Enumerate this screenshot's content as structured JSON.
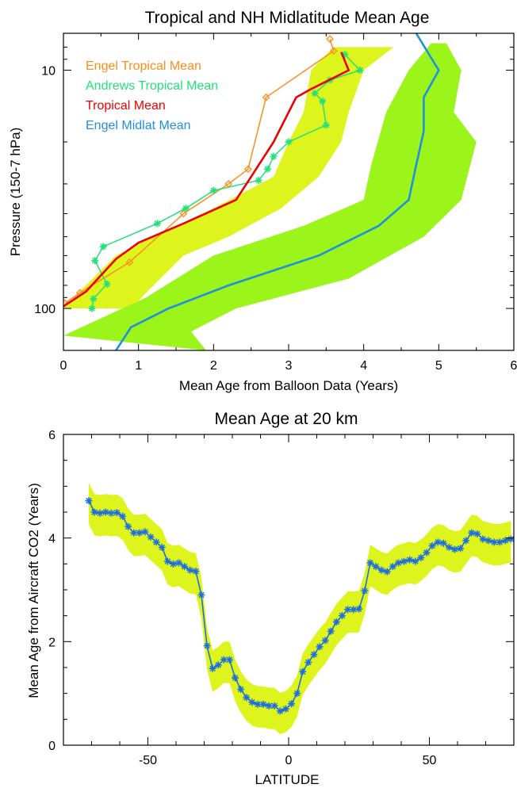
{
  "chart_data": [
    {
      "type": "line",
      "title": "Tropical and NH Midlatitude Mean Age",
      "xlabel": "Mean Age from Balloon Data (Years)",
      "ylabel": "Pressure (150-7 hPa)",
      "xlim": [
        0,
        6
      ],
      "ylim": [
        150,
        7
      ],
      "yscale": "log",
      "xticks": [
        "0",
        "1",
        "2",
        "3",
        "4",
        "5",
        "6"
      ],
      "yticks": [
        {
          "value": 100,
          "label": "100"
        },
        {
          "value": 10,
          "label": "10"
        }
      ],
      "legend_position": "top-left",
      "colors": {
        "engel_tropical": "#ff8c1a",
        "andrews_tropical": "#22e07a",
        "tropical_mean": "#ee0000",
        "engel_midlat": "#1f8fe0",
        "tropical_band": "#ddf51c",
        "midlat_band": "#9cf51a"
      },
      "bands": [
        {
          "name": "tropical-uncertainty",
          "color": "#ddf51c",
          "lower": [
            [
              0.0,
              100
            ],
            [
              0.3,
              80
            ],
            [
              0.7,
              60
            ],
            [
              1.2,
              50
            ],
            [
              2.0,
              38
            ],
            [
              2.8,
              28
            ],
            [
              3.0,
              20
            ],
            [
              3.2,
              15
            ],
            [
              3.3,
              10
            ],
            [
              3.6,
              8.0
            ]
          ],
          "upper": [
            [
              0.9,
              100
            ],
            [
              1.2,
              80
            ],
            [
              1.6,
              60
            ],
            [
              2.2,
              50
            ],
            [
              2.9,
              38
            ],
            [
              3.4,
              28
            ],
            [
              3.7,
              20
            ],
            [
              3.8,
              15
            ],
            [
              4.0,
              10
            ],
            [
              4.4,
              8.0
            ]
          ]
        },
        {
          "name": "midlatitude-uncertainty",
          "color": "#9cf51a",
          "lower": [
            [
              0.0,
              130
            ],
            [
              0.5,
              110
            ],
            [
              1.1,
              90
            ],
            [
              2.0,
              60
            ],
            [
              3.2,
              45
            ],
            [
              4.0,
              35
            ],
            [
              4.1,
              25
            ],
            [
              4.3,
              15
            ],
            [
              4.6,
              10
            ],
            [
              4.9,
              7.7
            ]
          ],
          "upper": [
            [
              1.9,
              150
            ],
            [
              1.7,
              125
            ],
            [
              2.3,
              100
            ],
            [
              3.8,
              75
            ],
            [
              4.8,
              50
            ],
            [
              5.3,
              35
            ],
            [
              5.5,
              20
            ],
            [
              5.2,
              15
            ],
            [
              5.3,
              10
            ],
            [
              5.1,
              7.7
            ]
          ]
        }
      ],
      "series": [
        {
          "name": "Engel Tropical Mean",
          "color": "#ff8c1a",
          "marker": "diamond",
          "points": [
            [
              0.02,
              95
            ],
            [
              0.22,
              86
            ],
            [
              0.88,
              64
            ],
            [
              1.6,
              40
            ],
            [
              2.2,
              30
            ],
            [
              2.46,
              26
            ],
            [
              2.7,
              13
            ],
            [
              3.6,
              8.3
            ],
            [
              3.55,
              7.4
            ]
          ]
        },
        {
          "name": "Andrews Tropical Mean",
          "color": "#22e07a",
          "marker": "asterisk",
          "points": [
            [
              0.38,
              100
            ],
            [
              0.4,
              91
            ],
            [
              0.58,
              79
            ],
            [
              0.42,
              63
            ],
            [
              0.53,
              55
            ],
            [
              1.25,
              44
            ],
            [
              1.63,
              38
            ],
            [
              2.0,
              32
            ],
            [
              2.6,
              29
            ],
            [
              2.72,
              26
            ],
            [
              2.8,
              23
            ],
            [
              3.0,
              20
            ],
            [
              3.5,
              17
            ],
            [
              3.45,
              13.5
            ],
            [
              3.35,
              12.5
            ],
            [
              3.55,
              11
            ],
            [
              3.95,
              10
            ],
            [
              3.75,
              8.6
            ]
          ]
        },
        {
          "name": "Tropical Mean",
          "color": "#ee0000",
          "marker": "none",
          "points": [
            [
              0.0,
              98
            ],
            [
              0.3,
              85
            ],
            [
              0.7,
              62
            ],
            [
              1.0,
              53
            ],
            [
              1.6,
              44
            ],
            [
              2.3,
              35
            ],
            [
              2.5,
              28
            ],
            [
              2.8,
              20
            ],
            [
              3.1,
              13
            ],
            [
              3.3,
              12
            ],
            [
              3.8,
              10
            ],
            [
              3.7,
              8.4
            ]
          ]
        },
        {
          "name": "Engel Midlat Mean",
          "color": "#1f8fe0",
          "marker": "none",
          "points": [
            [
              0.7,
              150
            ],
            [
              0.9,
              120
            ],
            [
              1.4,
              100
            ],
            [
              2.2,
              80
            ],
            [
              3.4,
              60
            ],
            [
              4.2,
              45
            ],
            [
              4.6,
              35
            ],
            [
              4.7,
              25
            ],
            [
              4.8,
              18
            ],
            [
              4.8,
              13
            ],
            [
              5.0,
              10
            ],
            [
              4.7,
              7.0
            ]
          ]
        }
      ]
    },
    {
      "type": "line",
      "title": "Mean Age at 20 km",
      "xlabel": "LATITUDE",
      "ylabel": "Mean Age from Aircraft CO2 (Years)",
      "xlim": [
        -80,
        80
      ],
      "ylim": [
        0,
        6
      ],
      "xticks": [
        "-50",
        "0",
        "50"
      ],
      "yticks": [
        "0",
        "2",
        "4",
        "6"
      ],
      "colors": {
        "series": "#1f6ee0",
        "band": "#ddf51c"
      },
      "band_halfwidth_lower": 0.45,
      "band_halfwidth_upper": 0.35,
      "series": [
        {
          "name": "",
          "color": "#1f6ee0",
          "marker": "asterisk",
          "x": [
            -71,
            -69,
            -67,
            -65,
            -63,
            -61,
            -59,
            -57,
            -55,
            -53,
            -51,
            -49,
            -47,
            -45,
            -43,
            -41,
            -39,
            -37,
            -35,
            -33,
            -31,
            -29,
            -27,
            -25,
            -23,
            -21,
            -19,
            -17,
            -15,
            -13,
            -11,
            -9,
            -7,
            -5,
            -3,
            -1,
            1,
            3,
            5,
            7,
            9,
            11,
            13,
            15,
            17,
            19,
            21,
            23,
            25,
            27,
            29,
            31,
            33,
            35,
            37,
            39,
            41,
            43,
            45,
            47,
            49,
            51,
            53,
            55,
            57,
            59,
            61,
            63,
            65,
            67,
            69,
            71,
            73,
            75,
            77,
            79
          ],
          "y": [
            4.72,
            4.5,
            4.48,
            4.5,
            4.48,
            4.49,
            4.42,
            4.22,
            4.1,
            4.1,
            4.12,
            4.02,
            3.92,
            3.82,
            3.55,
            3.5,
            3.52,
            3.45,
            3.38,
            3.36,
            2.9,
            1.92,
            1.48,
            1.55,
            1.65,
            1.65,
            1.3,
            1.08,
            0.92,
            0.83,
            0.79,
            0.79,
            0.76,
            0.76,
            0.66,
            0.7,
            0.8,
            1.0,
            1.42,
            1.6,
            1.75,
            1.9,
            2.02,
            2.2,
            2.38,
            2.5,
            2.62,
            2.62,
            2.63,
            2.98,
            3.52,
            3.45,
            3.38,
            3.35,
            3.45,
            3.52,
            3.55,
            3.58,
            3.55,
            3.62,
            3.72,
            3.85,
            3.92,
            3.9,
            3.82,
            3.78,
            3.8,
            3.95,
            4.1,
            4.08,
            3.98,
            3.95,
            3.92,
            3.92,
            3.95,
            3.98
          ]
        }
      ]
    }
  ]
}
